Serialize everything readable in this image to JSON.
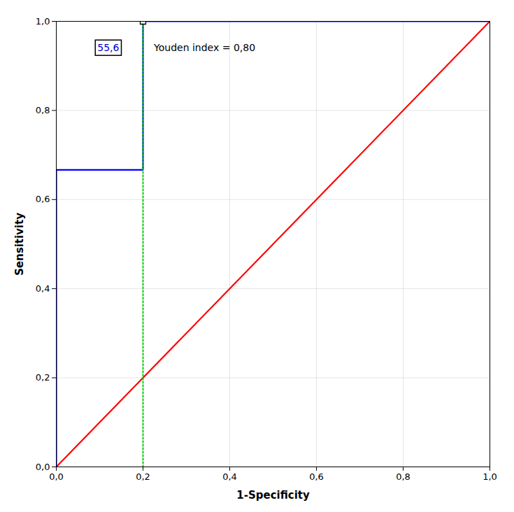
{
  "chart_data": {
    "type": "line",
    "x_label": "1-Specificity",
    "y_label": "Sensitivity",
    "xlim": [
      0.0,
      1.0
    ],
    "ylim": [
      0.0,
      1.0
    ],
    "xticks": [
      {
        "value": 0.0,
        "label": "0,0"
      },
      {
        "value": 0.2,
        "label": "0,2"
      },
      {
        "value": 0.4,
        "label": "0,4"
      },
      {
        "value": 0.6,
        "label": "0,6"
      },
      {
        "value": 0.8,
        "label": "0,8"
      },
      {
        "value": 1.0,
        "label": "1,0"
      }
    ],
    "yticks": [
      {
        "value": 0.0,
        "label": "0,0"
      },
      {
        "value": 0.2,
        "label": "0,2"
      },
      {
        "value": 0.4,
        "label": "0,4"
      },
      {
        "value": 0.6,
        "label": "0,6"
      },
      {
        "value": 0.8,
        "label": "0,8"
      },
      {
        "value": 1.0,
        "label": "1,0"
      }
    ],
    "grid": true,
    "series": [
      {
        "type": "line",
        "x": [
          0.0,
          1.0
        ],
        "values": [
          0.0,
          1.0
        ],
        "color": "#FF0000",
        "line_style": "solid"
      },
      {
        "type": "line",
        "x": [
          0.0,
          0.0,
          0.2,
          0.2,
          1.0
        ],
        "values": [
          0.0,
          0.6667,
          0.6667,
          1.0,
          1.0
        ],
        "color": "#0000FF",
        "line_style": "solid"
      },
      {
        "type": "line",
        "x": [
          0.2,
          0.2
        ],
        "values": [
          0.0,
          0.6667
        ],
        "color": "#00CC00",
        "line_style": "dotted"
      },
      {
        "type": "line",
        "x": [
          0.2,
          0.2
        ],
        "values": [
          0.6667,
          1.0
        ],
        "color": "#00CC00",
        "line_style": "dotted"
      },
      {
        "type": "scatter",
        "x": [
          0.2
        ],
        "values": [
          1.0
        ],
        "color": "#000000",
        "marker": "square"
      }
    ],
    "annotations": [
      {
        "text": "55,6",
        "x": 0.145,
        "y": 0.94,
        "color": "#0000CC"
      },
      {
        "text": "Youden index = 0,80",
        "x": 0.225,
        "y": 0.94
      }
    ]
  }
}
